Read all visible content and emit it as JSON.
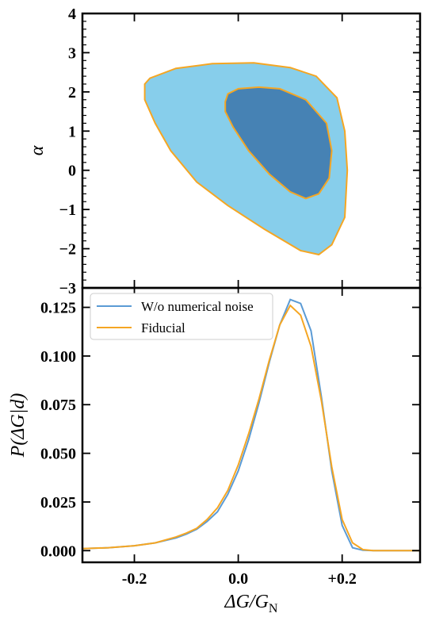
{
  "colors": {
    "outer_fill": "#87CEEB",
    "inner_fill": "#4682B4",
    "fiducial": "#F5A623",
    "no_noise": "#5B9BD5"
  },
  "chart_data": [
    {
      "type": "contour",
      "xlim": [
        -0.3,
        0.35
      ],
      "ylim": [
        -3,
        4
      ],
      "ylabel": "α",
      "yticks": [
        "4",
        "3",
        "2",
        "1",
        "0",
        "−1",
        "−2",
        "−3"
      ],
      "xticks": [
        "-0.2",
        "0.0",
        "+0.2"
      ],
      "regions": [
        {
          "name": "outer",
          "points": [
            [
              -0.18,
              2.2
            ],
            [
              -0.17,
              2.35
            ],
            [
              -0.12,
              2.6
            ],
            [
              -0.05,
              2.72
            ],
            [
              0.03,
              2.74
            ],
            [
              0.1,
              2.62
            ],
            [
              0.15,
              2.4
            ],
            [
              0.19,
              1.85
            ],
            [
              0.205,
              1.0
            ],
            [
              0.21,
              0.0
            ],
            [
              0.205,
              -1.2
            ],
            [
              0.18,
              -1.9
            ],
            [
              0.155,
              -2.15
            ],
            [
              0.12,
              -2.05
            ],
            [
              0.05,
              -1.5
            ],
            [
              -0.02,
              -0.9
            ],
            [
              -0.08,
              -0.3
            ],
            [
              -0.13,
              0.5
            ],
            [
              -0.16,
              1.2
            ],
            [
              -0.18,
              1.8
            ],
            [
              -0.18,
              2.2
            ]
          ]
        },
        {
          "name": "inner",
          "points": [
            [
              -0.025,
              1.75
            ],
            [
              -0.02,
              1.95
            ],
            [
              0.0,
              2.08
            ],
            [
              0.04,
              2.12
            ],
            [
              0.08,
              2.08
            ],
            [
              0.13,
              1.8
            ],
            [
              0.17,
              1.2
            ],
            [
              0.18,
              0.5
            ],
            [
              0.175,
              -0.2
            ],
            [
              0.155,
              -0.6
            ],
            [
              0.13,
              -0.72
            ],
            [
              0.1,
              -0.55
            ],
            [
              0.06,
              -0.1
            ],
            [
              0.02,
              0.5
            ],
            [
              -0.01,
              1.1
            ],
            [
              -0.025,
              1.5
            ],
            [
              -0.025,
              1.75
            ]
          ]
        }
      ]
    },
    {
      "type": "line",
      "xlim": [
        -0.3,
        0.35
      ],
      "ylim": [
        -0.006,
        0.135
      ],
      "xlabel": "ΔG/G_N",
      "ylabel": "P(ΔG|d)",
      "yticks": [
        "0.000",
        "0.025",
        "0.050",
        "0.075",
        "0.100",
        "0.125"
      ],
      "xticks": [
        "-0.2",
        "0.0",
        "+0.2"
      ],
      "legend_position": "top-left",
      "series": [
        {
          "name": "W/o numerical noise",
          "x": [
            -0.3,
            -0.25,
            -0.2,
            -0.16,
            -0.12,
            -0.1,
            -0.08,
            -0.06,
            -0.04,
            -0.02,
            0.0,
            0.02,
            0.04,
            0.06,
            0.08,
            0.1,
            0.12,
            0.14,
            0.16,
            0.18,
            0.2,
            0.22,
            0.24,
            0.26,
            0.3,
            0.35
          ],
          "y": [
            0.001,
            0.0015,
            0.0025,
            0.004,
            0.0065,
            0.0085,
            0.011,
            0.015,
            0.02,
            0.029,
            0.041,
            0.057,
            0.076,
            0.097,
            0.116,
            0.129,
            0.127,
            0.113,
            0.079,
            0.041,
            0.013,
            0.0015,
            0.0002,
            0.0,
            0.0,
            0.0
          ]
        },
        {
          "name": "Fiducial",
          "x": [
            -0.3,
            -0.25,
            -0.2,
            -0.16,
            -0.12,
            -0.1,
            -0.08,
            -0.06,
            -0.04,
            -0.02,
            0.0,
            0.02,
            0.04,
            0.06,
            0.08,
            0.1,
            0.12,
            0.14,
            0.16,
            0.18,
            0.2,
            0.22,
            0.24,
            0.26,
            0.3,
            0.35
          ],
          "y": [
            0.001,
            0.0015,
            0.0025,
            0.004,
            0.007,
            0.009,
            0.0115,
            0.016,
            0.022,
            0.031,
            0.044,
            0.06,
            0.078,
            0.098,
            0.116,
            0.126,
            0.121,
            0.105,
            0.077,
            0.043,
            0.016,
            0.004,
            0.0005,
            0.0,
            0.0,
            0.0
          ]
        }
      ]
    }
  ]
}
